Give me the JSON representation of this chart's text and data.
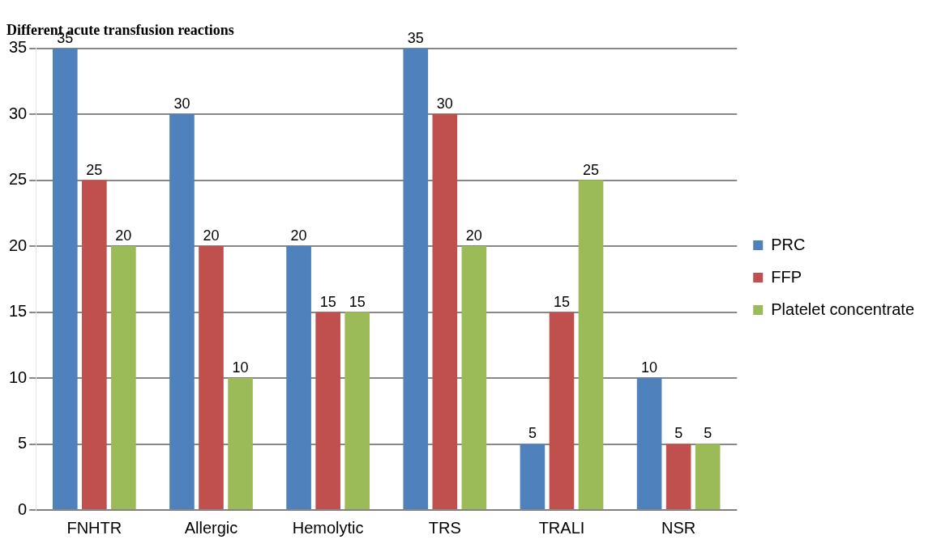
{
  "chart_data": {
    "type": "bar",
    "title": "Different acute transfusion reactions",
    "categories": [
      "FNHTR",
      "Allergic",
      "Hemolytic",
      "TRS",
      "TRALI",
      "NSR"
    ],
    "series": [
      {
        "name": "PRC",
        "color": "#4f81bd",
        "values": [
          35,
          30,
          20,
          35,
          5,
          10
        ]
      },
      {
        "name": "FFP",
        "color": "#c0504d",
        "values": [
          25,
          20,
          15,
          30,
          15,
          5
        ]
      },
      {
        "name": "Platelet concentrate",
        "color": "#9bbb59",
        "values": [
          20,
          10,
          15,
          20,
          25,
          5
        ]
      }
    ],
    "ylim": [
      0,
      35
    ],
    "yticks": [
      0,
      5,
      10,
      15,
      20,
      25,
      30,
      35
    ],
    "grid": "y",
    "legend": "right",
    "data_labels": true
  }
}
